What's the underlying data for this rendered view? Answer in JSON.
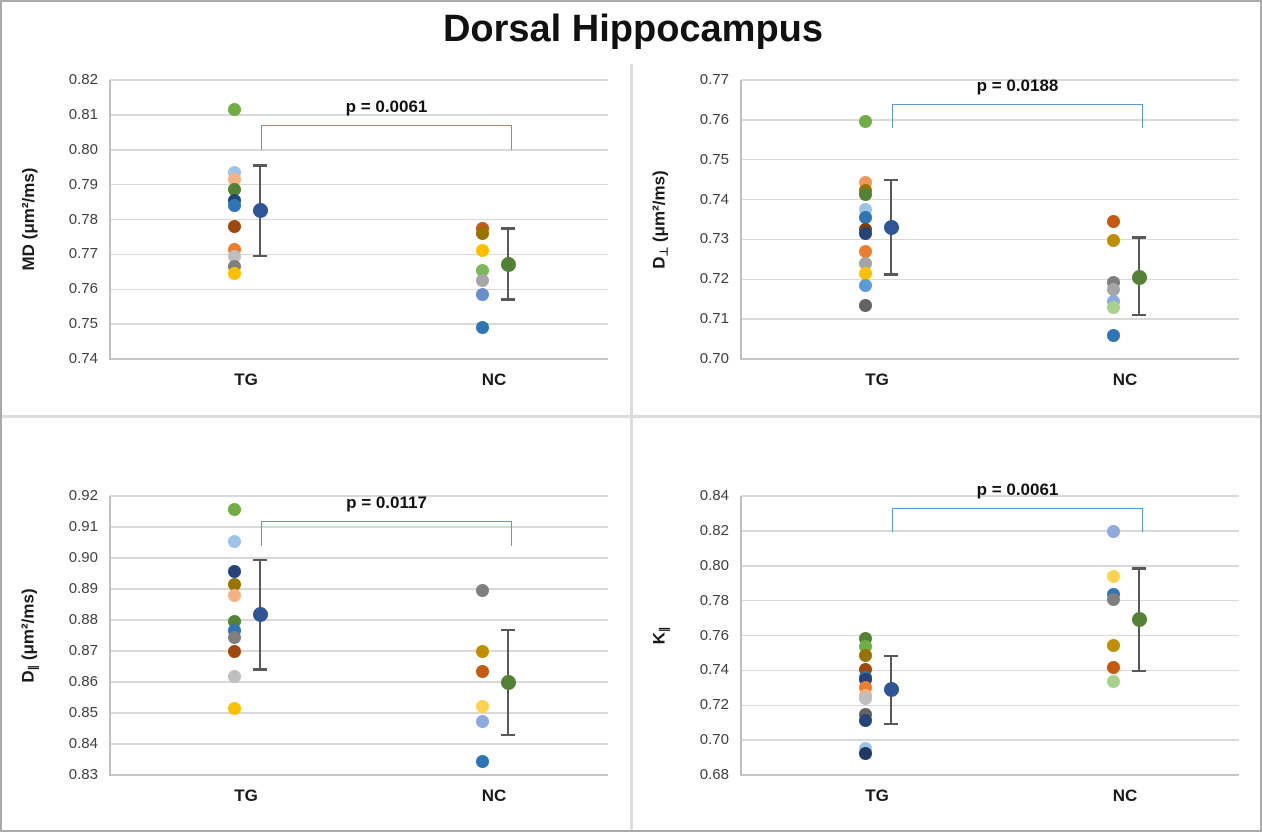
{
  "title": "Dorsal Hippocampus",
  "chart_data": [
    {
      "id": "MD",
      "type": "scatter",
      "ylabel": {
        "base": "MD",
        "sub": "",
        "unit": " (μm²/ms)"
      },
      "ylim": [
        0.74,
        0.82
      ],
      "ytick_step": 0.01,
      "p_value_label": "p = 0.0061",
      "bracket": {
        "top": 0.807,
        "ends": 0.8
      },
      "grid": true,
      "legend": "none",
      "groups": [
        {
          "label": "TG",
          "points": [
            {
              "v": 0.8115,
              "c": "#70AD47"
            },
            {
              "v": 0.7935,
              "c": "#9DC3E6"
            },
            {
              "v": 0.7915,
              "c": "#F4B183"
            },
            {
              "v": 0.7885,
              "c": "#548235"
            },
            {
              "v": 0.7855,
              "c": "#264478"
            },
            {
              "v": 0.784,
              "c": "#2E75B6"
            },
            {
              "v": 0.778,
              "c": "#9E480E"
            },
            {
              "v": 0.7715,
              "c": "#ED7D31"
            },
            {
              "v": 0.7695,
              "c": "#BFBFBF"
            },
            {
              "v": 0.7665,
              "c": "#7F7F7F"
            },
            {
              "v": 0.7645,
              "c": "#FFC000"
            }
          ],
          "mean": {
            "v": 0.7825,
            "lo": 0.7695,
            "hi": 0.7955,
            "c": "#2F5597"
          }
        },
        {
          "label": "NC",
          "points": [
            {
              "v": 0.7775,
              "c": "#C55A11"
            },
            {
              "v": 0.776,
              "c": "#997300"
            },
            {
              "v": 0.771,
              "c": "#FFC000"
            },
            {
              "v": 0.7655,
              "c": "#7CB857"
            },
            {
              "v": 0.7625,
              "c": "#A6A6A6"
            },
            {
              "v": 0.7585,
              "c": "#698ED0"
            },
            {
              "v": 0.749,
              "c": "#2E75B6"
            }
          ],
          "mean": {
            "v": 0.767,
            "lo": 0.757,
            "hi": 0.7775,
            "c": "#538135"
          }
        }
      ]
    },
    {
      "id": "D_perp",
      "type": "scatter",
      "ylabel": {
        "base": "D",
        "sub": "⊥",
        "unit": " (μm²/ms)"
      },
      "ylim": [
        0.7,
        0.77
      ],
      "ytick_step": 0.01,
      "p_value_label": "p = 0.0188",
      "bracket": {
        "top": 0.764,
        "ends": 0.758
      },
      "grid": true,
      "legend": "none",
      "groups": [
        {
          "label": "TG",
          "points": [
            {
              "v": 0.7595,
              "c": "#70AD47"
            },
            {
              "v": 0.7442,
              "c": "#F1975A"
            },
            {
              "v": 0.7422,
              "c": "#997300"
            },
            {
              "v": 0.7412,
              "c": "#548235"
            },
            {
              "v": 0.7375,
              "c": "#9DC3E6"
            },
            {
              "v": 0.7355,
              "c": "#2E75B6"
            },
            {
              "v": 0.7326,
              "c": "#843C0C"
            },
            {
              "v": 0.7316,
              "c": "#264478"
            },
            {
              "v": 0.727,
              "c": "#ED7D31"
            },
            {
              "v": 0.724,
              "c": "#A5A5A5"
            },
            {
              "v": 0.7215,
              "c": "#FFC000"
            },
            {
              "v": 0.7185,
              "c": "#5B9BD5"
            },
            {
              "v": 0.7135,
              "c": "#636363"
            }
          ],
          "mean": {
            "v": 0.733,
            "lo": 0.7212,
            "hi": 0.745,
            "c": "#2F5597"
          }
        },
        {
          "label": "NC",
          "points": [
            {
              "v": 0.7345,
              "c": "#C55A11"
            },
            {
              "v": 0.7298,
              "c": "#BF8F00"
            },
            {
              "v": 0.7192,
              "c": "#7F7F7F"
            },
            {
              "v": 0.7175,
              "c": "#A6A6A6"
            },
            {
              "v": 0.7145,
              "c": "#8FAADC"
            },
            {
              "v": 0.713,
              "c": "#A9D18E"
            },
            {
              "v": 0.706,
              "c": "#2E75B6"
            }
          ],
          "mean": {
            "v": 0.7205,
            "lo": 0.711,
            "hi": 0.7305,
            "c": "#538135"
          }
        }
      ]
    },
    {
      "id": "D_par",
      "type": "scatter",
      "ylabel": {
        "base": "D",
        "sub": "∥",
        "unit": " (μm²/ms)"
      },
      "ylim": [
        0.83,
        0.92
      ],
      "ytick_step": 0.01,
      "p_value_label": "p = 0.0117",
      "bracket": {
        "top": 0.912,
        "ends": 0.904
      },
      "grid": true,
      "legend": "none",
      "groups": [
        {
          "label": "TG",
          "points": [
            {
              "v": 0.9155,
              "c": "#70AD47"
            },
            {
              "v": 0.9053,
              "c": "#9DC3E6"
            },
            {
              "v": 0.8955,
              "c": "#264478"
            },
            {
              "v": 0.8915,
              "c": "#997300"
            },
            {
              "v": 0.8878,
              "c": "#F4B183"
            },
            {
              "v": 0.8795,
              "c": "#548235"
            },
            {
              "v": 0.8765,
              "c": "#2E75B6"
            },
            {
              "v": 0.8742,
              "c": "#7F7F7F"
            },
            {
              "v": 0.8698,
              "c": "#9E480E"
            },
            {
              "v": 0.8618,
              "c": "#BFBFBF"
            },
            {
              "v": 0.8513,
              "c": "#FFC000"
            }
          ],
          "mean": {
            "v": 0.8818,
            "lo": 0.864,
            "hi": 0.8995,
            "c": "#2F5597"
          }
        },
        {
          "label": "NC",
          "points": [
            {
              "v": 0.8895,
              "c": "#7F7F7F"
            },
            {
              "v": 0.8698,
              "c": "#BF8F00"
            },
            {
              "v": 0.8635,
              "c": "#C55A11"
            },
            {
              "v": 0.852,
              "c": "#FFD34D"
            },
            {
              "v": 0.8472,
              "c": "#8FAADC"
            },
            {
              "v": 0.8345,
              "c": "#2E75B6"
            }
          ],
          "mean": {
            "v": 0.86,
            "lo": 0.8428,
            "hi": 0.8768,
            "c": "#538135"
          }
        }
      ]
    },
    {
      "id": "K_par",
      "type": "scatter",
      "ylabel": {
        "base": "K",
        "sub": "∥",
        "unit": ""
      },
      "ylim": [
        0.68,
        0.84
      ],
      "ytick_step": 0.02,
      "p_value_label": "p = 0.0061",
      "bracket": {
        "top": 0.833,
        "ends": 0.8195
      },
      "grid": true,
      "legend": "none",
      "groups": [
        {
          "label": "TG",
          "points": [
            {
              "v": 0.758,
              "c": "#548235"
            },
            {
              "v": 0.7535,
              "c": "#70AD47"
            },
            {
              "v": 0.7485,
              "c": "#997300"
            },
            {
              "v": 0.7405,
              "c": "#9E480E"
            },
            {
              "v": 0.736,
              "c": "#2E75B6"
            },
            {
              "v": 0.7345,
              "c": "#264478"
            },
            {
              "v": 0.73,
              "c": "#ED7D31"
            },
            {
              "v": 0.7255,
              "c": "#F4B183"
            },
            {
              "v": 0.724,
              "c": "#BFBFBF"
            },
            {
              "v": 0.7145,
              "c": "#636363"
            },
            {
              "v": 0.7115,
              "c": "#264478"
            },
            {
              "v": 0.695,
              "c": "#9DC3E6"
            },
            {
              "v": 0.6925,
              "c": "#1F3864"
            }
          ],
          "mean": {
            "v": 0.729,
            "lo": 0.709,
            "hi": 0.7485,
            "c": "#2F5597"
          }
        },
        {
          "label": "NC",
          "points": [
            {
              "v": 0.8195,
              "c": "#8FAADC"
            },
            {
              "v": 0.794,
              "c": "#FFD34D"
            },
            {
              "v": 0.7835,
              "c": "#2E75B6"
            },
            {
              "v": 0.7805,
              "c": "#7F7F7F"
            },
            {
              "v": 0.7545,
              "c": "#BF8F00"
            },
            {
              "v": 0.7415,
              "c": "#C55A11"
            },
            {
              "v": 0.7335,
              "c": "#A9D18E"
            }
          ],
          "mean": {
            "v": 0.769,
            "lo": 0.7395,
            "hi": 0.7985,
            "c": "#538135"
          }
        }
      ]
    }
  ],
  "colors": {
    "grid": "#D9D9D9",
    "axis": "#BFBFBF",
    "error_bar": "#595959",
    "bracket": "#5B9BD5",
    "mean_tg": "#2F5597",
    "mean_nc": "#538135"
  }
}
